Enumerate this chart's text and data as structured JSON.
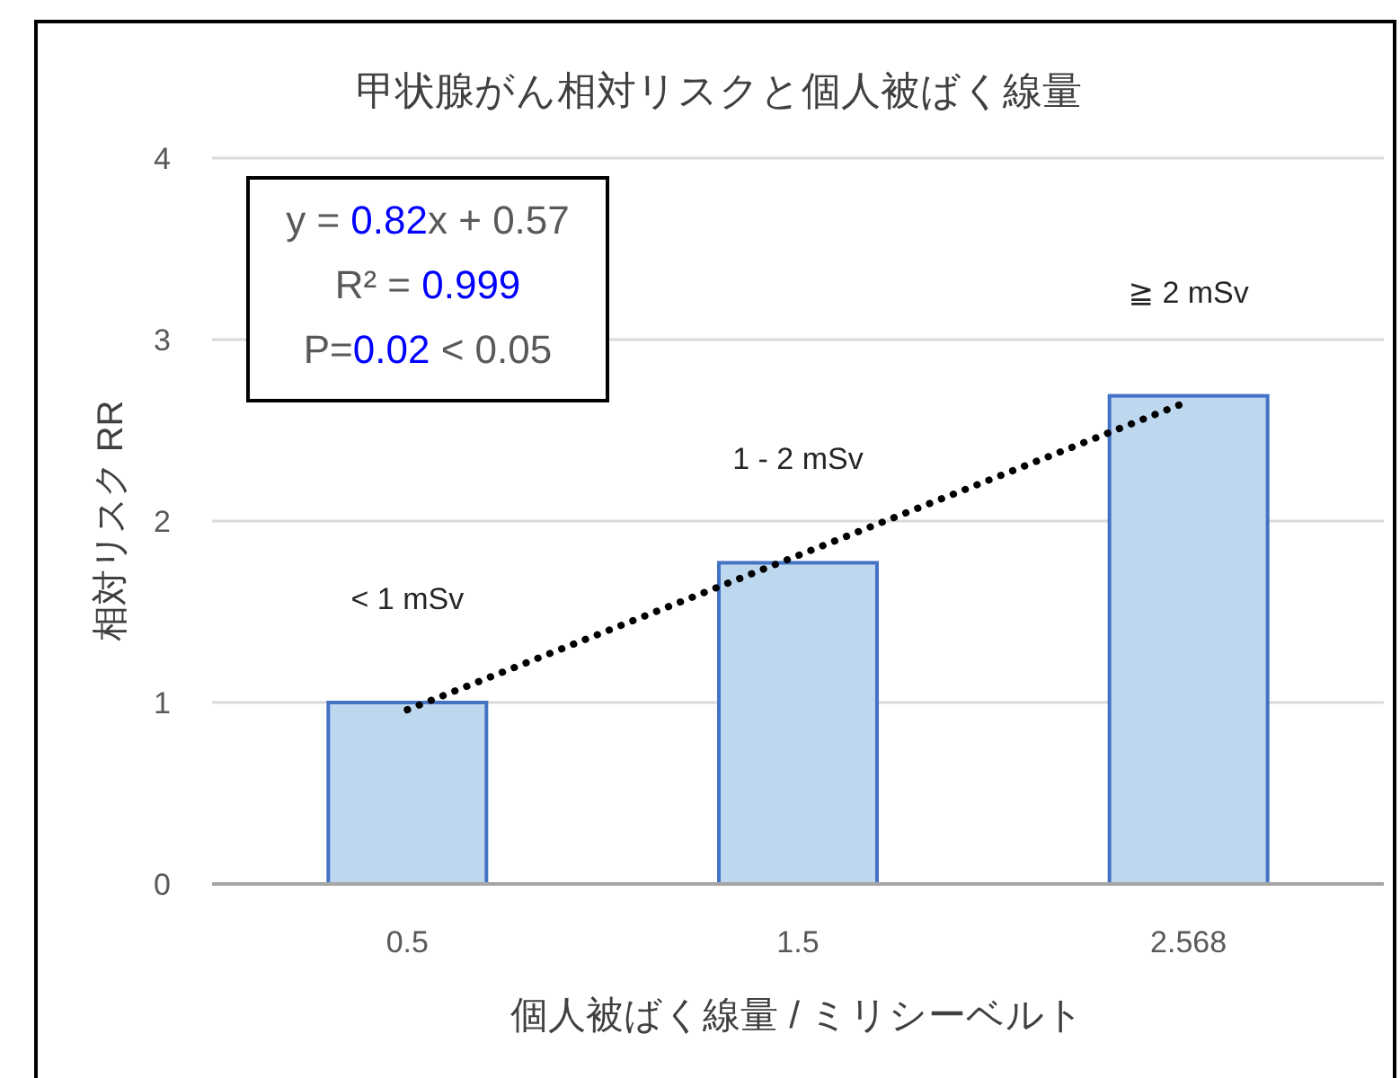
{
  "chart_data": {
    "type": "bar",
    "title": "甲状腺がん相対リスクと個人被ばく線量",
    "xlabel": "個人被ばく線量 / ミリシーベルト",
    "ylabel": "相対リスク RR",
    "categories": [
      "0.5",
      "1.5",
      "2.568"
    ],
    "series": [
      {
        "color": "#bdd7ee",
        "values": [
          1.0,
          1.77,
          2.69
        ]
      },
      {
        "type": "line",
        "color": "#000000",
        "line_style": "dotted",
        "x": [
          "0.5",
          "2.568"
        ],
        "values": [
          0.96,
          2.66
        ]
      }
    ],
    "ylim": [
      0,
      4
    ],
    "yticks": [
      0,
      1,
      2,
      3,
      4
    ],
    "grid": "y",
    "annotations": [
      "y = 0.82x + 0.57",
      "R² = 0.999",
      "P=0.02 < 0.05",
      "< 1 mSv",
      "1 - 2 mSv",
      "≧ 2 mSv"
    ]
  }
}
